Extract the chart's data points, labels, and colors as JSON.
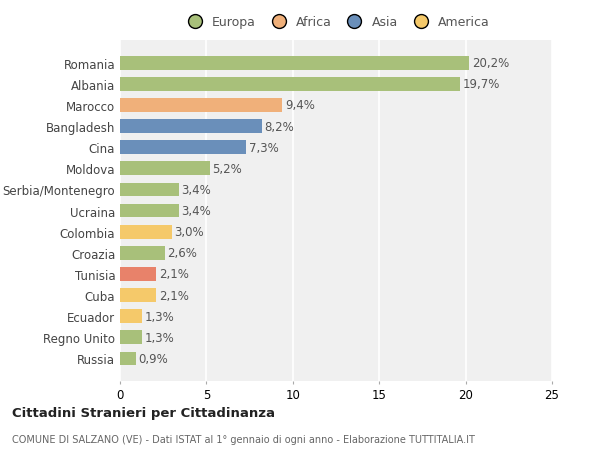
{
  "countries": [
    "Romania",
    "Albania",
    "Marocco",
    "Bangladesh",
    "Cina",
    "Moldova",
    "Serbia/Montenegro",
    "Ucraina",
    "Colombia",
    "Croazia",
    "Tunisia",
    "Cuba",
    "Ecuador",
    "Regno Unito",
    "Russia"
  ],
  "values": [
    20.2,
    19.7,
    9.4,
    8.2,
    7.3,
    5.2,
    3.4,
    3.4,
    3.0,
    2.6,
    2.1,
    2.1,
    1.3,
    1.3,
    0.9
  ],
  "labels": [
    "20,2%",
    "19,7%",
    "9,4%",
    "8,2%",
    "7,3%",
    "5,2%",
    "3,4%",
    "3,4%",
    "3,0%",
    "2,6%",
    "2,1%",
    "2,1%",
    "1,3%",
    "1,3%",
    "0,9%"
  ],
  "colors": [
    "#a8c07a",
    "#a8c07a",
    "#f0b07a",
    "#6a8fba",
    "#6a8fba",
    "#a8c07a",
    "#a8c07a",
    "#a8c07a",
    "#f5c96a",
    "#a8c07a",
    "#e8826a",
    "#f5c96a",
    "#f5c96a",
    "#a8c07a",
    "#a8c07a"
  ],
  "legend_labels": [
    "Europa",
    "Africa",
    "Asia",
    "America"
  ],
  "legend_colors": [
    "#a8c07a",
    "#f0b07a",
    "#6a8fba",
    "#f5c96a"
  ],
  "title": "Cittadini Stranieri per Cittadinanza",
  "subtitle": "COMUNE DI SALZANO (VE) - Dati ISTAT al 1° gennaio di ogni anno - Elaborazione TUTTITALIA.IT",
  "xlim": [
    0,
    25
  ],
  "xticks": [
    0,
    5,
    10,
    15,
    20,
    25
  ],
  "bg_color": "#ffffff",
  "plot_bg_color": "#f0f0f0",
  "grid_color": "#ffffff",
  "bar_height": 0.65,
  "label_fontsize": 8.5,
  "tick_fontsize": 8.5,
  "value_label_color": "#555555"
}
